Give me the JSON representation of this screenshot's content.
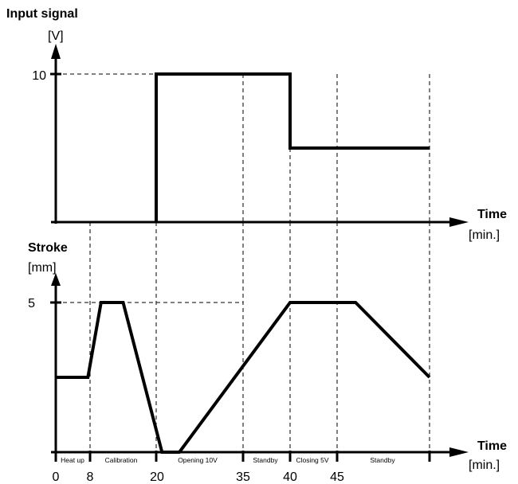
{
  "chart_data": [
    {
      "type": "line",
      "title": "Input signal",
      "ylabel": "[V]",
      "xlabel": "Time",
      "xunit": "[min.]",
      "ylim": [
        0,
        10
      ],
      "yticks": [
        "10"
      ],
      "series": [
        {
          "x": [
            20,
            20,
            40,
            40,
            60
          ],
          "y": [
            0,
            10,
            10,
            5,
            5
          ]
        }
      ]
    },
    {
      "type": "line",
      "title": "Stroke",
      "ylabel": "[mm]",
      "xlabel": "Time",
      "xunit": "[min.]",
      "ylim": [
        0,
        5
      ],
      "yticks": [
        "5"
      ],
      "xticks": [
        "0",
        "8",
        "20",
        "35",
        "40",
        "45"
      ],
      "phases": [
        "Heat up",
        "Calibration",
        "Opening 10V",
        "Standby",
        "Closing 5V",
        "Standby"
      ],
      "series": [
        {
          "x": [
            0,
            7.5,
            10,
            14,
            21,
            24,
            40,
            48,
            60
          ],
          "y": [
            2.5,
            2.5,
            5,
            5,
            0,
            0,
            5,
            5,
            2.5
          ]
        }
      ]
    }
  ]
}
